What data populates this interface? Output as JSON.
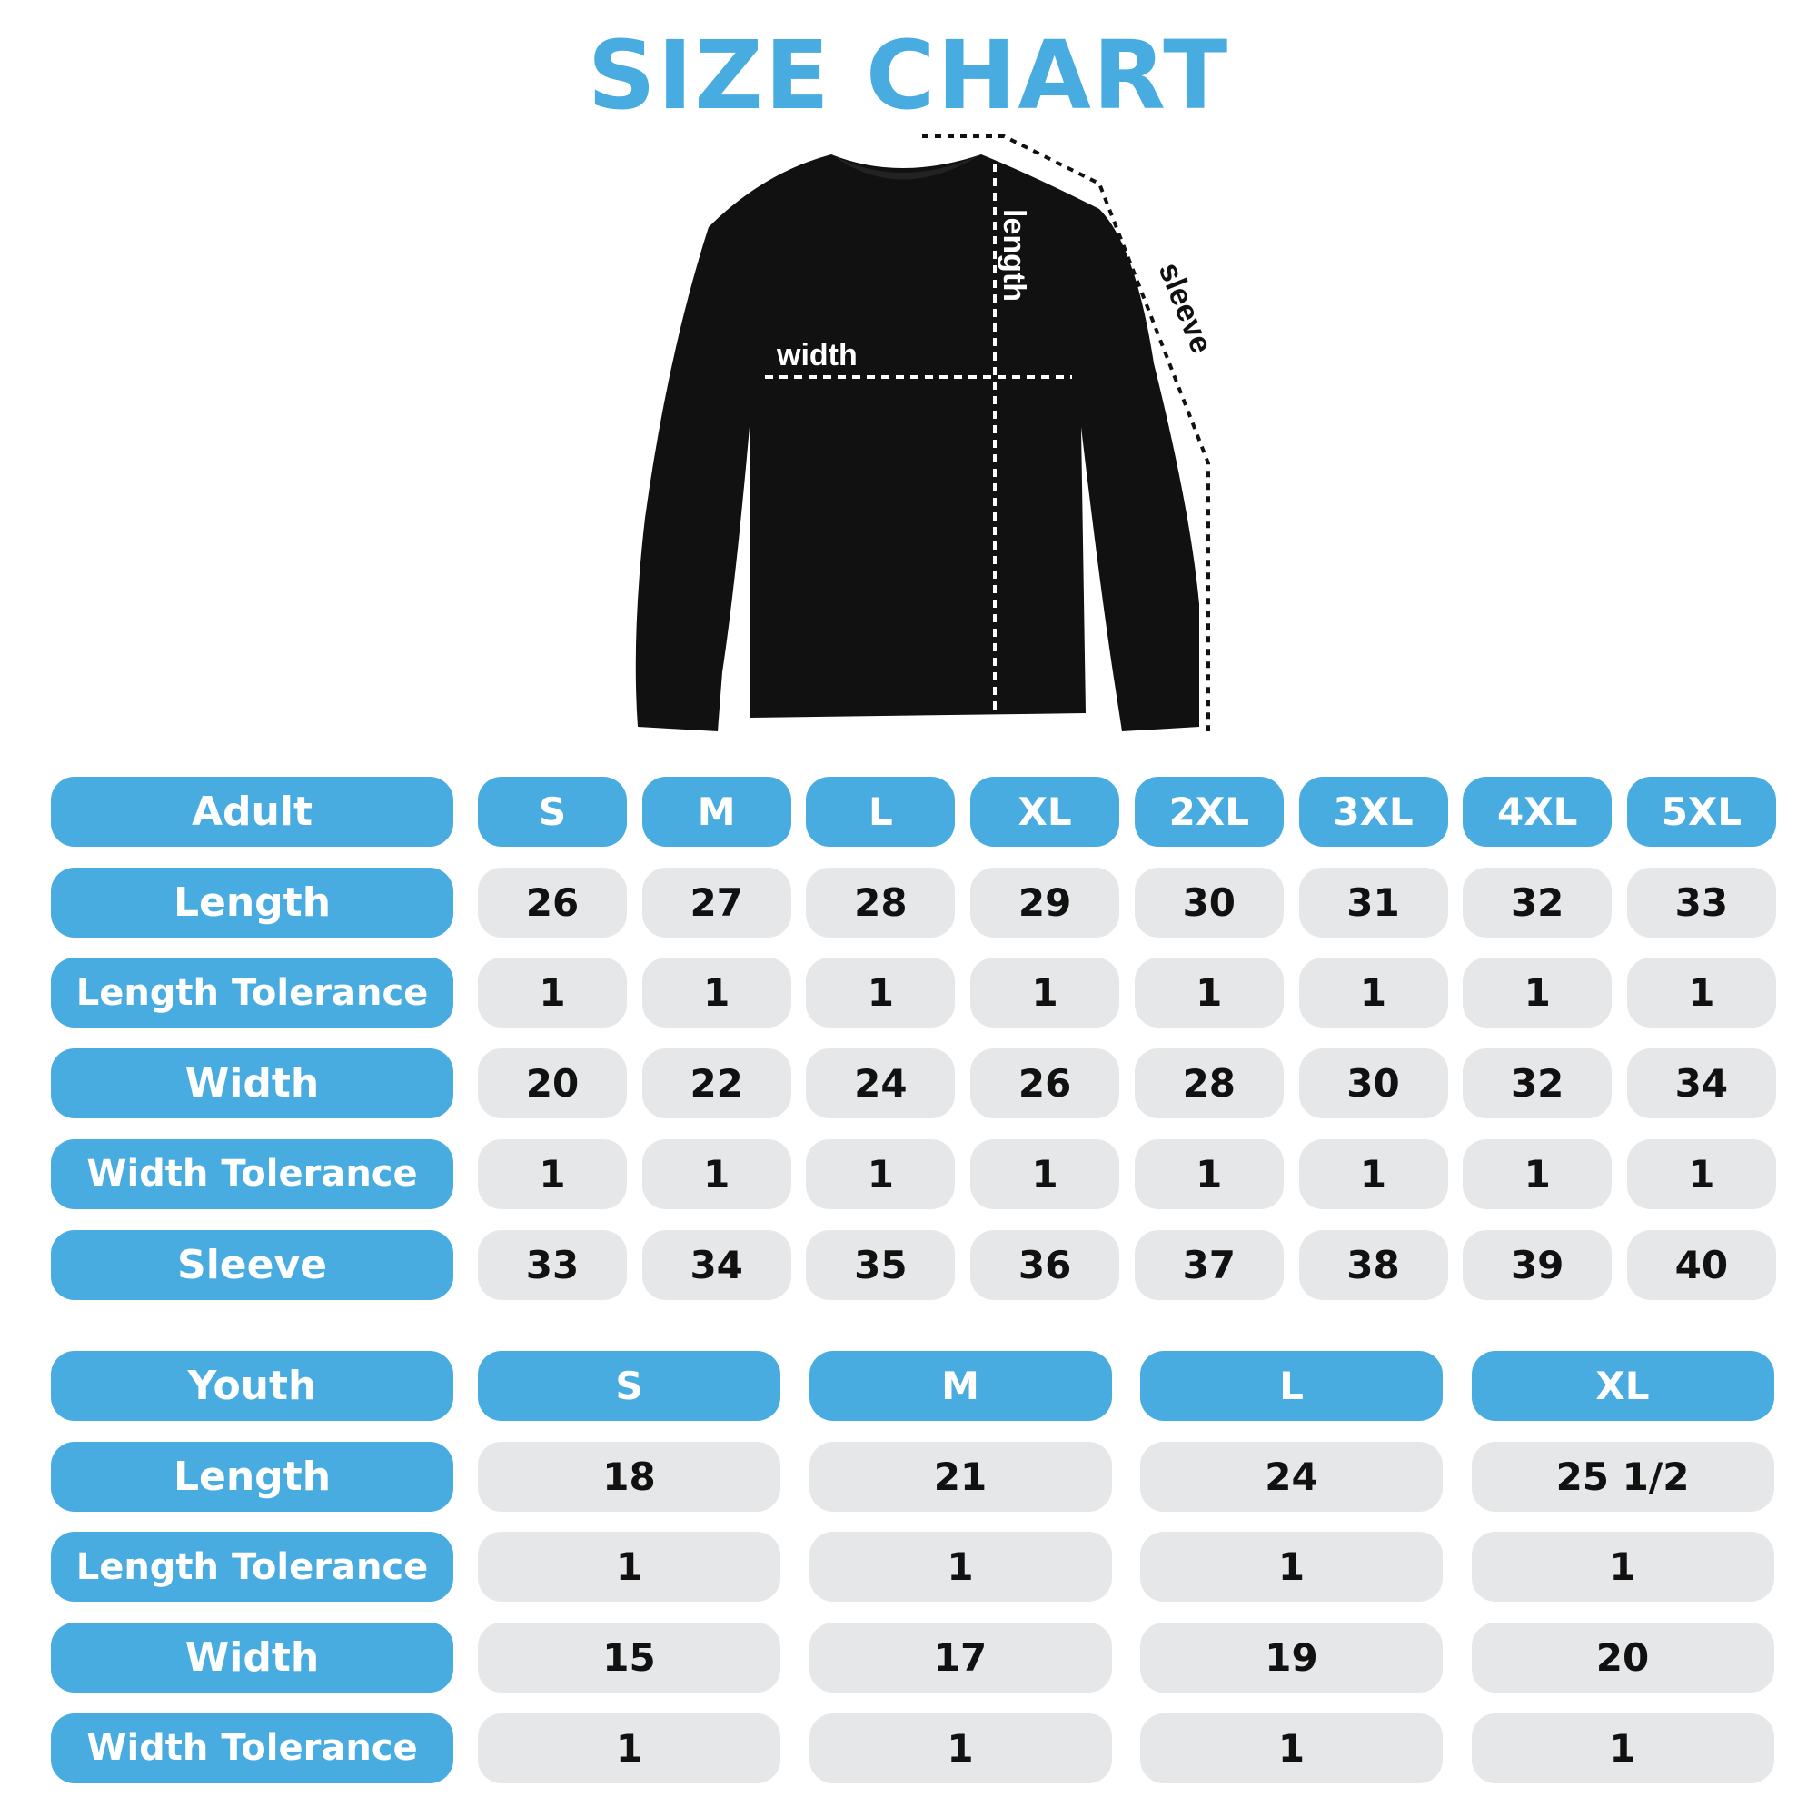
{
  "title": "SIZE CHART",
  "diagram_labels": {
    "width": "width",
    "length": "length",
    "sleeve": "sleeve"
  },
  "colors": {
    "accent": "#48ace0",
    "cell": "#e6e7e9",
    "garment": "#111111"
  },
  "adult": {
    "header": "Adult",
    "sizes": [
      "S",
      "M",
      "L",
      "XL",
      "2XL",
      "3XL",
      "4XL",
      "5XL"
    ],
    "rows": [
      {
        "label": "Length",
        "values": [
          "26",
          "27",
          "28",
          "29",
          "30",
          "31",
          "32",
          "33"
        ]
      },
      {
        "label": "Length Tolerance",
        "values": [
          "1",
          "1",
          "1",
          "1",
          "1",
          "1",
          "1",
          "1"
        ]
      },
      {
        "label": "Width",
        "values": [
          "20",
          "22",
          "24",
          "26",
          "28",
          "30",
          "32",
          "34"
        ]
      },
      {
        "label": "Width Tolerance",
        "values": [
          "1",
          "1",
          "1",
          "1",
          "1",
          "1",
          "1",
          "1"
        ]
      },
      {
        "label": "Sleeve",
        "values": [
          "33",
          "34",
          "35",
          "36",
          "37",
          "38",
          "39",
          "40"
        ]
      }
    ]
  },
  "youth": {
    "header": "Youth",
    "sizes": [
      "S",
      "M",
      "L",
      "XL"
    ],
    "rows": [
      {
        "label": "Length",
        "values": [
          "18",
          "21",
          "24",
          "25 1/2"
        ]
      },
      {
        "label": "Length Tolerance",
        "values": [
          "1",
          "1",
          "1",
          "1"
        ]
      },
      {
        "label": "Width",
        "values": [
          "15",
          "17",
          "19",
          "20"
        ]
      },
      {
        "label": "Width Tolerance",
        "values": [
          "1",
          "1",
          "1",
          "1"
        ]
      }
    ]
  }
}
